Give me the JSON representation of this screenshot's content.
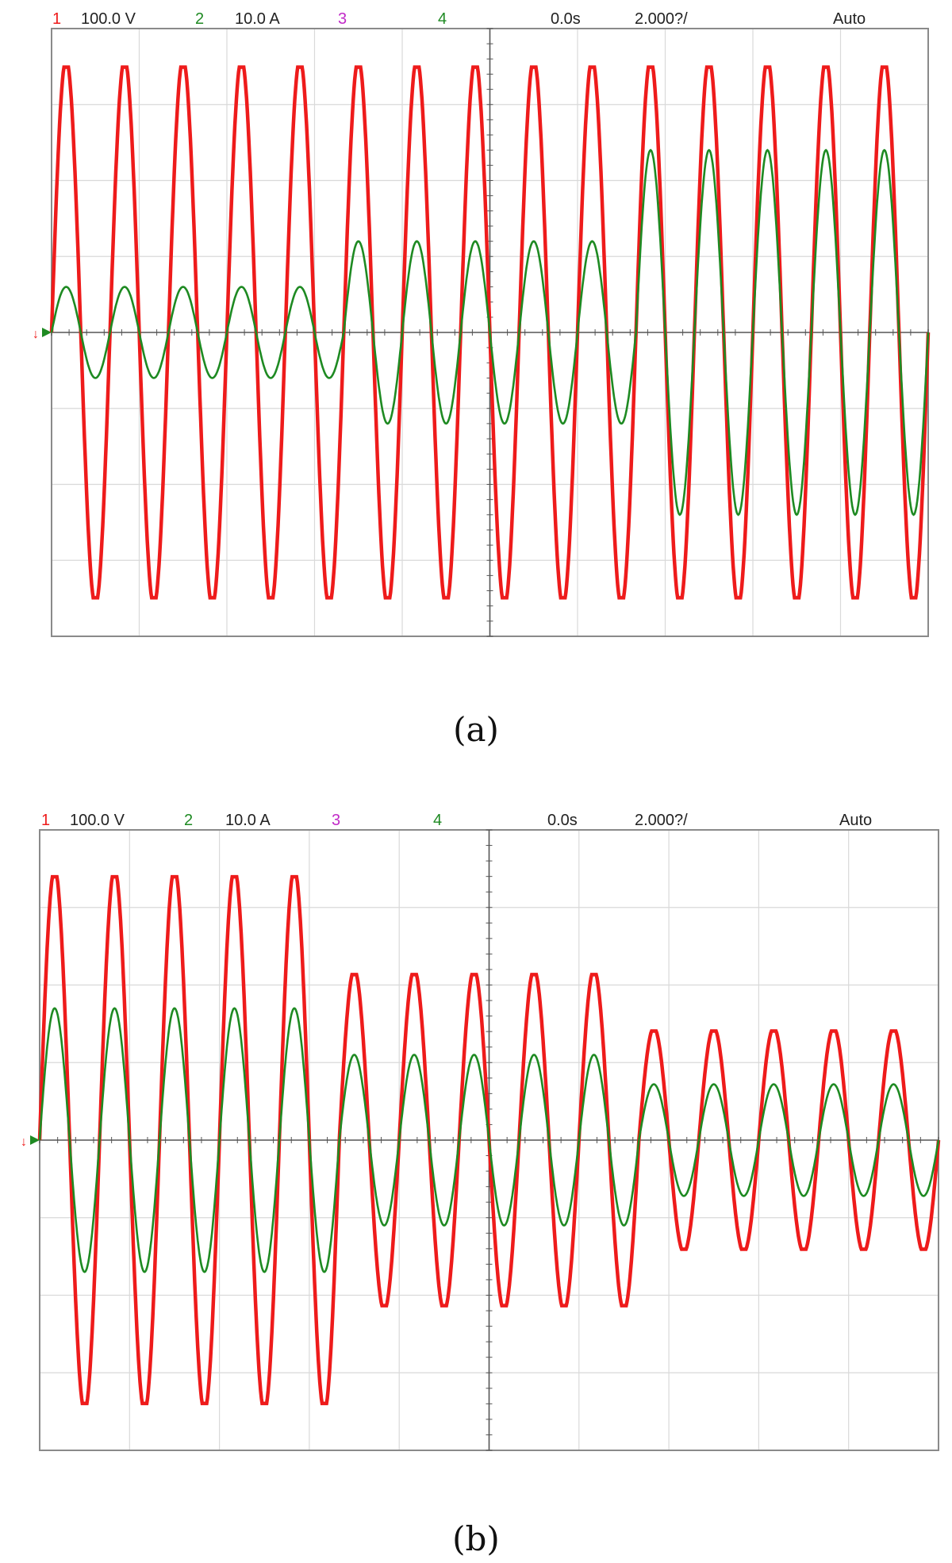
{
  "chart_data": [
    {
      "type": "line",
      "panel_caption": "(a)",
      "header": {
        "ch1_num": "1",
        "ch1_scale": "100.0 V",
        "ch2_num": "2",
        "ch2_scale": "10.0 A",
        "ch3_num": "3",
        "ch4_num": "4",
        "delay": "0.0s",
        "timebase": "2.000?/",
        "mode": "Auto"
      },
      "colors": {
        "voltage": "#ee1b1b",
        "current": "#1e8a22",
        "ch3": "#c12ac8",
        "ch4": "#1e8a22"
      },
      "grid": true,
      "divisions": {
        "x": 10,
        "y": 8
      },
      "ylim_div": [
        -4,
        4
      ],
      "xlim_div": [
        0,
        10
      ],
      "voltage": {
        "amplitude_div": 3.6,
        "cycles": 15,
        "clip_div": 3.6
      },
      "current_segments": [
        {
          "cycles": 5,
          "amplitude_div": 0.6
        },
        {
          "cycles": 5,
          "amplitude_div": 1.2
        },
        {
          "cycles": 5,
          "amplitude_div": 2.4
        }
      ]
    },
    {
      "type": "line",
      "panel_caption": "(b)",
      "header": {
        "ch1_num": "1",
        "ch1_scale": "100.0 V",
        "ch2_num": "2",
        "ch2_scale": "10.0 A",
        "ch3_num": "3",
        "ch4_num": "4",
        "delay": "0.0s",
        "timebase": "2.000?/",
        "mode": "Auto"
      },
      "colors": {
        "voltage": "#ee1b1b",
        "current": "#1e8a22",
        "ch3": "#c12ac8",
        "ch4": "#1e8a22"
      },
      "grid": true,
      "divisions": {
        "x": 10,
        "y": 8
      },
      "ylim_div": [
        -4,
        4
      ],
      "xlim_div": [
        0,
        10
      ],
      "voltage_segments": [
        {
          "cycles": 5,
          "amplitude_div": 3.5
        },
        {
          "cycles": 5,
          "amplitude_div": 2.2
        },
        {
          "cycles": 5,
          "amplitude_div": 1.45
        }
      ],
      "current_segments": [
        {
          "cycles": 5,
          "amplitude_div": 1.7
        },
        {
          "cycles": 5,
          "amplitude_div": 1.1
        },
        {
          "cycles": 5,
          "amplitude_div": 0.72
        }
      ]
    }
  ]
}
